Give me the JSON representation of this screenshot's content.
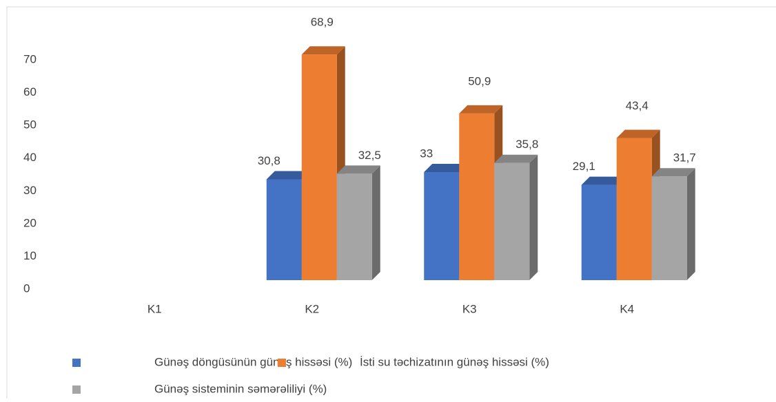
{
  "chart_data": {
    "type": "bar3d",
    "categories": [
      "K1",
      "K2",
      "K3",
      "K4"
    ],
    "series": [
      {
        "name": "Günəş döngüsünün günəş hissəsi (%)",
        "color": "#4472c4",
        "values": [
          null,
          30.8,
          33,
          29.1
        ],
        "value_labels": [
          null,
          "30,8",
          "33",
          "29,1"
        ]
      },
      {
        "name": "İsti su təchizatının günəş hissəsi (%)",
        "color": "#ed7d31",
        "values": [
          null,
          68.9,
          50.9,
          43.4
        ],
        "value_labels": [
          null,
          "68,9",
          "50,9",
          "43,4"
        ]
      },
      {
        "name": "Günəş sisteminin səmərəliliyi (%)",
        "color": "#a5a5a5",
        "values": [
          null,
          32.5,
          35.8,
          31.7
        ],
        "value_labels": [
          null,
          "32,5",
          "35,8",
          "31,7"
        ]
      }
    ],
    "ylim": [
      0,
      70
    ],
    "yticks": [
      0,
      10,
      20,
      30,
      40,
      50,
      60,
      70
    ],
    "grid": false,
    "legend": "bottom"
  }
}
